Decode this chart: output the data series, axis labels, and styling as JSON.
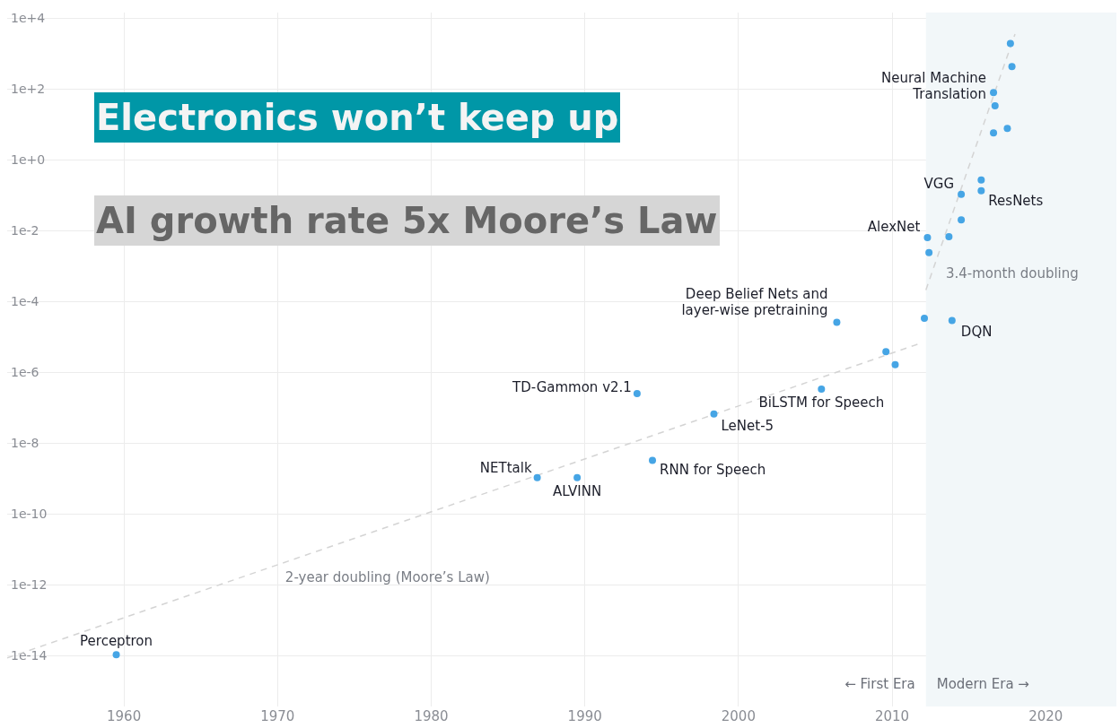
{
  "chart_data": {
    "type": "scatter",
    "title": "Electronics won’t keep up",
    "subtitle": "AI growth rate 5x Moore’s Law",
    "xlim": [
      1952.4,
      2024.6
    ],
    "xticks": [
      1960,
      1970,
      1980,
      1990,
      2000,
      2010,
      2020
    ],
    "ylim": [
      3.8e-16,
      15000
    ],
    "log": "y",
    "yticks": [
      {
        "value": 1e-14,
        "label": "1e-14"
      },
      {
        "value": 1e-12,
        "label": "1e-12"
      },
      {
        "value": 1e-10,
        "label": "1e-10"
      },
      {
        "value": 1e-08,
        "label": "1e-8"
      },
      {
        "value": 1e-06,
        "label": "1e-6"
      },
      {
        "value": 0.0001,
        "label": "1e-4"
      },
      {
        "value": 0.01,
        "label": "1e-2"
      },
      {
        "value": 1,
        "label": "1e+0"
      },
      {
        "value": 100,
        "label": "1e+2"
      },
      {
        "value": 10000,
        "label": "1e+4"
      }
    ],
    "grid": true,
    "legend": false,
    "series": [
      {
        "type": "scatter",
        "color": "#46a5e5",
        "marker": "circle",
        "x": [
          1959.5,
          1986.9,
          1989.5,
          1993.4,
          1994.4,
          1998.4,
          2005.4,
          2006.4,
          2009.6,
          2010.2,
          2012.1,
          2013.9,
          2012.4,
          2012.3,
          2013.7,
          2014.5,
          2014.5,
          2015.8,
          2015.8,
          2016.6,
          2017.5,
          2016.6,
          2016.7,
          2017.8,
          2017.7
        ],
        "values": [
          1.1e-14,
          1.1e-09,
          1.1e-09,
          2.6e-07,
          3.4e-09,
          6.9e-08,
          3.5e-07,
          2.7e-05,
          4e-06,
          1.7e-06,
          3.5e-05,
          3e-05,
          0.0025,
          0.0066,
          0.007,
          0.021,
          0.11,
          0.14,
          0.28,
          6,
          8,
          83,
          35,
          450,
          2000
        ]
      },
      {
        "type": "line",
        "color": "#d4d4d4",
        "line_style": "dashed",
        "marker": "none",
        "x": [
          1952.4,
          2011.9
        ],
        "values": [
          8.9e-15,
          7e-06
        ]
      },
      {
        "type": "line",
        "color": "#d4d4d4",
        "line_style": "dashed",
        "marker": "none",
        "x": [
          2012.2,
          2018.0
        ],
        "values": [
          0.00022,
          3700
        ]
      }
    ],
    "bands": [
      {
        "axis": "x",
        "from": 2012.2,
        "to": 2024.6,
        "label": "Modern Era →",
        "color": "#f2f7f9"
      }
    ],
    "annotations": [
      {
        "text": "Perceptron",
        "x": 1959.5,
        "y": 1.1e-14
      },
      {
        "text": "NETtalk",
        "x": 1986.9,
        "y": 1.1e-09
      },
      {
        "text": "ALVINN",
        "x": 1989.5,
        "y": 1.1e-09
      },
      {
        "text": "TD-Gammon v2.1",
        "x": 1993.4,
        "y": 2.6e-07
      },
      {
        "text": "RNN for Speech",
        "x": 1994.4,
        "y": 3.4e-09
      },
      {
        "text": "LeNet-5",
        "x": 1998.4,
        "y": 6.9e-08
      },
      {
        "text": "BiLSTM for Speech",
        "x": 2005.4,
        "y": 3.5e-07
      },
      {
        "text": "Deep Belief Nets and\nlayer-wise pretraining",
        "x": 2006.4,
        "y": 2.7e-05
      },
      {
        "text": "AlexNet",
        "x": 2012.3,
        "y": 0.0066
      },
      {
        "text": "DQN",
        "x": 2013.9,
        "y": 3e-05
      },
      {
        "text": "VGG",
        "x": 2014.5,
        "y": 0.11
      },
      {
        "text": "ResNets",
        "x": 2015.8,
        "y": 0.14
      },
      {
        "text": "Neural Machine\nTranslation",
        "x": 2016.6,
        "y": 83
      },
      "2-year doubling (Moore’s Law)",
      "3.4-month doubling",
      "← First Era"
    ]
  }
}
